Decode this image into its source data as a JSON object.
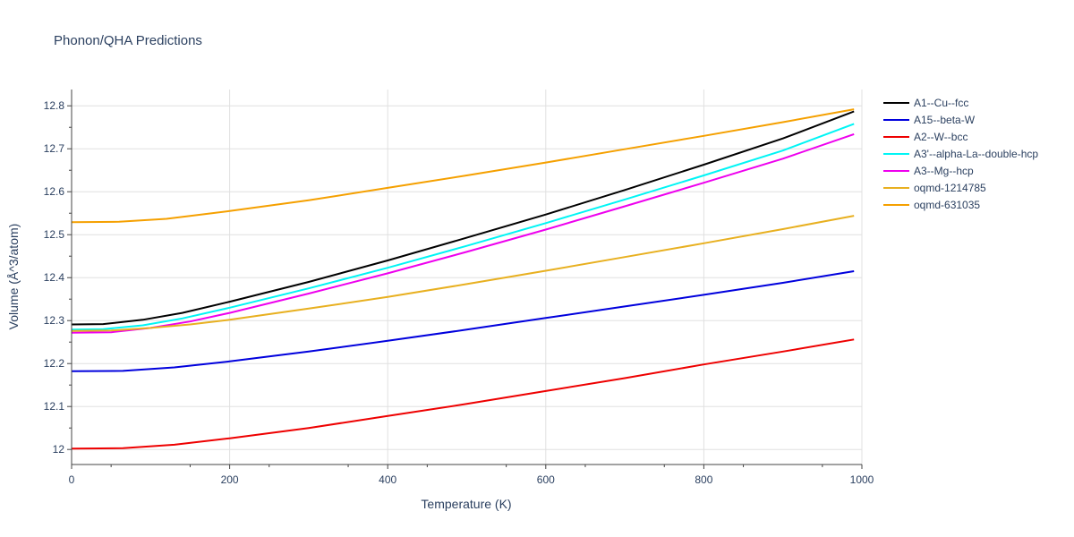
{
  "chart_data": {
    "type": "line",
    "title": "Phonon/QHA Predictions",
    "xlabel": "Temperature (K)",
    "ylabel": "Volume (Å^3/atom)",
    "xlim": [
      0,
      1000
    ],
    "ylim": [
      11.965,
      12.838
    ],
    "xticks": [
      0,
      200,
      400,
      600,
      800,
      1000
    ],
    "xtick_labels": [
      "0",
      "200",
      "400",
      "600",
      "800",
      "1000"
    ],
    "yticks": [
      12.0,
      12.1,
      12.2,
      12.3,
      12.4,
      12.5,
      12.6,
      12.7,
      12.8
    ],
    "ytick_labels": [
      "12",
      "12.1",
      "12.2",
      "12.3",
      "12.4",
      "12.5",
      "12.6",
      "12.7",
      "12.8"
    ],
    "grid": true,
    "legend_position": "right",
    "series": [
      {
        "name": "A1--Cu--fcc",
        "color": "#000000",
        "x": [
          0,
          40,
          90,
          140,
          200,
          300,
          400,
          500,
          600,
          700,
          800,
          900,
          990
        ],
        "y": [
          12.291,
          12.292,
          12.302,
          12.318,
          12.344,
          12.39,
          12.44,
          12.493,
          12.547,
          12.604,
          12.663,
          12.724,
          12.787
        ]
      },
      {
        "name": "A15--beta-W",
        "color": "#0000dd",
        "x": [
          0,
          65,
          130,
          200,
          300,
          400,
          500,
          600,
          700,
          800,
          900,
          990
        ],
        "y": [
          12.182,
          12.183,
          12.191,
          12.205,
          12.228,
          12.253,
          12.279,
          12.306,
          12.333,
          12.36,
          12.388,
          12.415
        ]
      },
      {
        "name": "A2--W--bcc",
        "color": "#ee0000",
        "x": [
          0,
          65,
          130,
          200,
          300,
          400,
          500,
          600,
          700,
          800,
          900,
          990
        ],
        "y": [
          12.002,
          12.003,
          12.011,
          12.026,
          12.05,
          12.078,
          12.106,
          12.136,
          12.166,
          12.198,
          12.228,
          12.256
        ]
      },
      {
        "name": "A3'--alpha-La--double-hcp",
        "color": "#00f5f5",
        "x": [
          0,
          40,
          90,
          140,
          200,
          300,
          400,
          500,
          600,
          700,
          800,
          900,
          990
        ],
        "y": [
          12.279,
          12.28,
          12.289,
          12.305,
          12.33,
          12.375,
          12.423,
          12.474,
          12.527,
          12.582,
          12.638,
          12.696,
          12.758
        ]
      },
      {
        "name": "A3--Mg--hcp",
        "color": "#ee00ee",
        "x": [
          0,
          50,
          100,
          150,
          200,
          300,
          400,
          500,
          600,
          700,
          800,
          900,
          990
        ],
        "y": [
          12.272,
          12.273,
          12.283,
          12.298,
          12.318,
          12.363,
          12.41,
          12.46,
          12.512,
          12.566,
          12.621,
          12.677,
          12.734
        ]
      },
      {
        "name": "oqmd-1214785",
        "color": "#e8b020",
        "x": [
          0,
          50,
          100,
          150,
          200,
          300,
          400,
          500,
          600,
          700,
          800,
          900,
          990
        ],
        "y": [
          12.276,
          12.277,
          12.283,
          12.291,
          12.302,
          12.328,
          12.355,
          12.385,
          12.416,
          12.448,
          12.48,
          12.513,
          12.544
        ]
      },
      {
        "name": "oqmd-631035",
        "color": "#f5a000",
        "x": [
          0,
          60,
          120,
          200,
          300,
          400,
          500,
          600,
          700,
          800,
          900,
          990
        ],
        "y": [
          12.529,
          12.53,
          12.537,
          12.555,
          12.58,
          12.609,
          12.638,
          12.668,
          12.699,
          12.73,
          12.762,
          12.792
        ]
      }
    ]
  }
}
